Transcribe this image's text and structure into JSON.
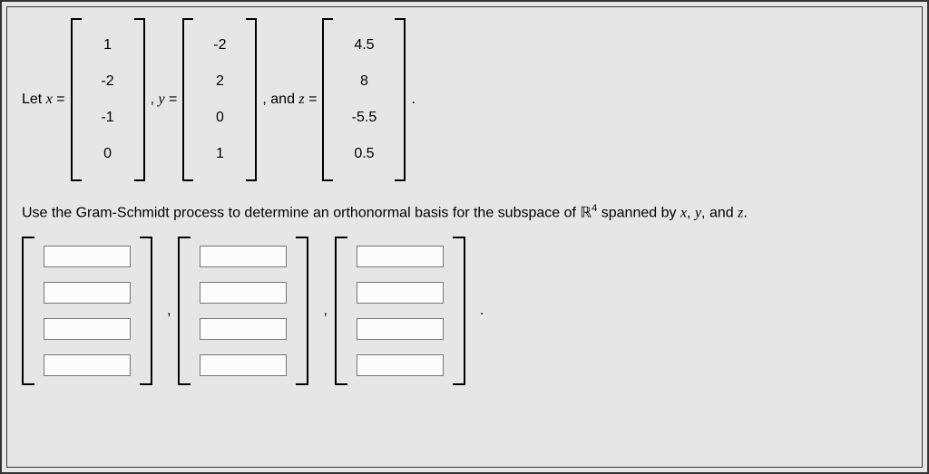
{
  "problem": {
    "let_text": "Let ",
    "x_eq": "x =",
    "comma_y_eq": ", y =",
    "comma_and_z_eq": ", and z =",
    "period": ".",
    "x_vector": [
      "1",
      "-2",
      "-1",
      "0"
    ],
    "y_vector": [
      "-2",
      "2",
      "0",
      "1"
    ],
    "z_vector": [
      "4.5",
      "8",
      "-5.5",
      "0.5"
    ],
    "instruction_pre": "Use the Gram-Schmidt process to determine an orthonormal basis for the subspace of ",
    "R_symbol": "ℝ",
    "R_exp": "4",
    "instruction_post": " spanned by ",
    "x_sym": "x",
    "y_sym": "y",
    "z_sym": "z",
    "comma": ", ",
    "and": ", and ",
    "end": "."
  },
  "answer": {
    "num_vectors": 3,
    "rows": 4,
    "sep_comma": ",",
    "sep_period": "."
  },
  "style": {
    "bg": "#e6e6e6",
    "border": "#333333",
    "text": "#000000",
    "input_border": "#777777",
    "input_bg": "#fcfcfc"
  }
}
